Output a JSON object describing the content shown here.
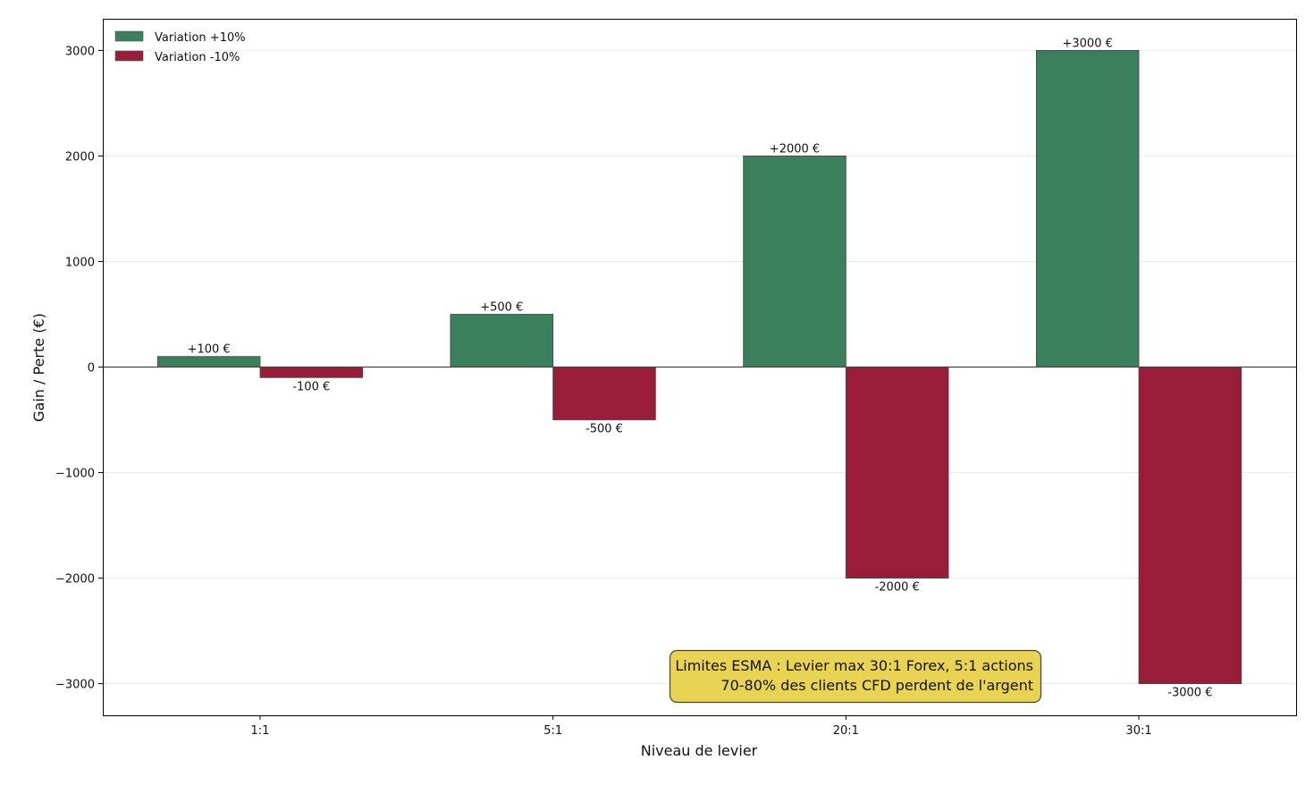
{
  "chart_data": {
    "type": "bar",
    "title": "",
    "xlabel": "Niveau de levier",
    "ylabel": "Gain / Perte (€)",
    "categories": [
      "1:1",
      "5:1",
      "20:1",
      "30:1"
    ],
    "series": [
      {
        "name": "Variation +10%",
        "values": [
          100,
          500,
          2000,
          3000
        ],
        "color": "#3a805c",
        "labels": [
          "+100 €",
          "+500 €",
          "+2000 €",
          "+3000 €"
        ]
      },
      {
        "name": "Variation -10%",
        "values": [
          -100,
          -500,
          -2000,
          -3000
        ],
        "color": "#9a1d38",
        "labels": [
          "-100 €",
          "-500 €",
          "-2000 €",
          "-3000 €"
        ]
      }
    ],
    "ylim": [
      -3300,
      3300
    ],
    "yticks": [
      -3000,
      -2000,
      -1000,
      0,
      1000,
      2000,
      3000
    ],
    "ytick_labels": [
      "−3000",
      "−2000",
      "−1000",
      "0",
      "1000",
      "2000",
      "3000"
    ],
    "grid": "horizontal",
    "legend_position": "top-left",
    "annotation": {
      "lines": [
        "Limites ESMA : Levier max 30:1 Forex, 5:1 actions",
        "70-80% des clients CFD perdent de l'argent"
      ],
      "background": "#e8d452",
      "position": "bottom-center-right"
    }
  }
}
